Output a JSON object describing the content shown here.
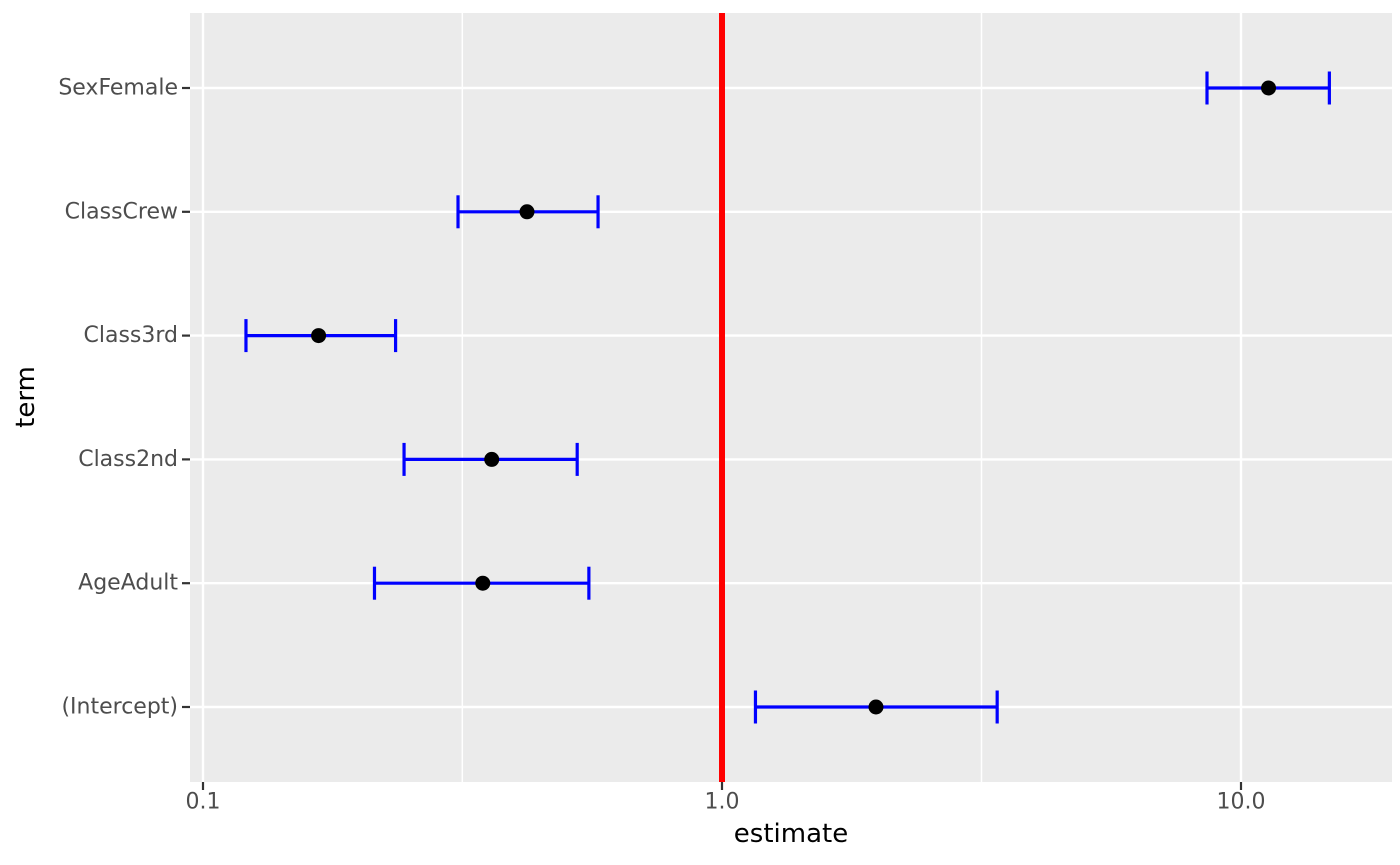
{
  "figure": {
    "background": "#FFFFFF",
    "panel_background": "#EBEBEB",
    "grid_color": "#FFFFFF",
    "axis_text_color": "#4D4D4D",
    "axis_title_color": "#000000",
    "tick_mark_color": "#333333"
  },
  "chart_data": {
    "type": "scatter",
    "subtype": "forest-plot-errorbars",
    "title": "",
    "xlabel": "estimate",
    "ylabel": "term",
    "x_scale": "log10",
    "x_domain": [
      0.094,
      19.5
    ],
    "x_ticks": [
      {
        "value": 0.1,
        "label": "0.1"
      },
      {
        "value": 1.0,
        "label": "1.0"
      },
      {
        "value": 10.0,
        "label": "10.0"
      }
    ],
    "x_minor_breaks": [
      0.316,
      3.162
    ],
    "grid": true,
    "legend_position": "none",
    "reference_line": {
      "x": 1.0,
      "color": "#FF0000"
    },
    "errorbar_color": "#0000FF",
    "point_color": "#000000",
    "y_categories_top_to_bottom": [
      "SexFemale",
      "ClassCrew",
      "Class3rd",
      "Class2nd",
      "AgeAdult",
      "(Intercept)"
    ],
    "series": [
      {
        "term": "SexFemale",
        "estimate": 11.3,
        "conf_low": 8.6,
        "conf_high": 14.8
      },
      {
        "term": "ClassCrew",
        "estimate": 0.421,
        "conf_low": 0.31,
        "conf_high": 0.577
      },
      {
        "term": "Class3rd",
        "estimate": 0.167,
        "conf_low": 0.121,
        "conf_high": 0.235
      },
      {
        "term": "Class2nd",
        "estimate": 0.36,
        "conf_low": 0.244,
        "conf_high": 0.526
      },
      {
        "term": "AgeAdult",
        "estimate": 0.346,
        "conf_low": 0.214,
        "conf_high": 0.554
      },
      {
        "term": "(Intercept)",
        "estimate": 1.98,
        "conf_low": 1.16,
        "conf_high": 3.39
      }
    ]
  }
}
